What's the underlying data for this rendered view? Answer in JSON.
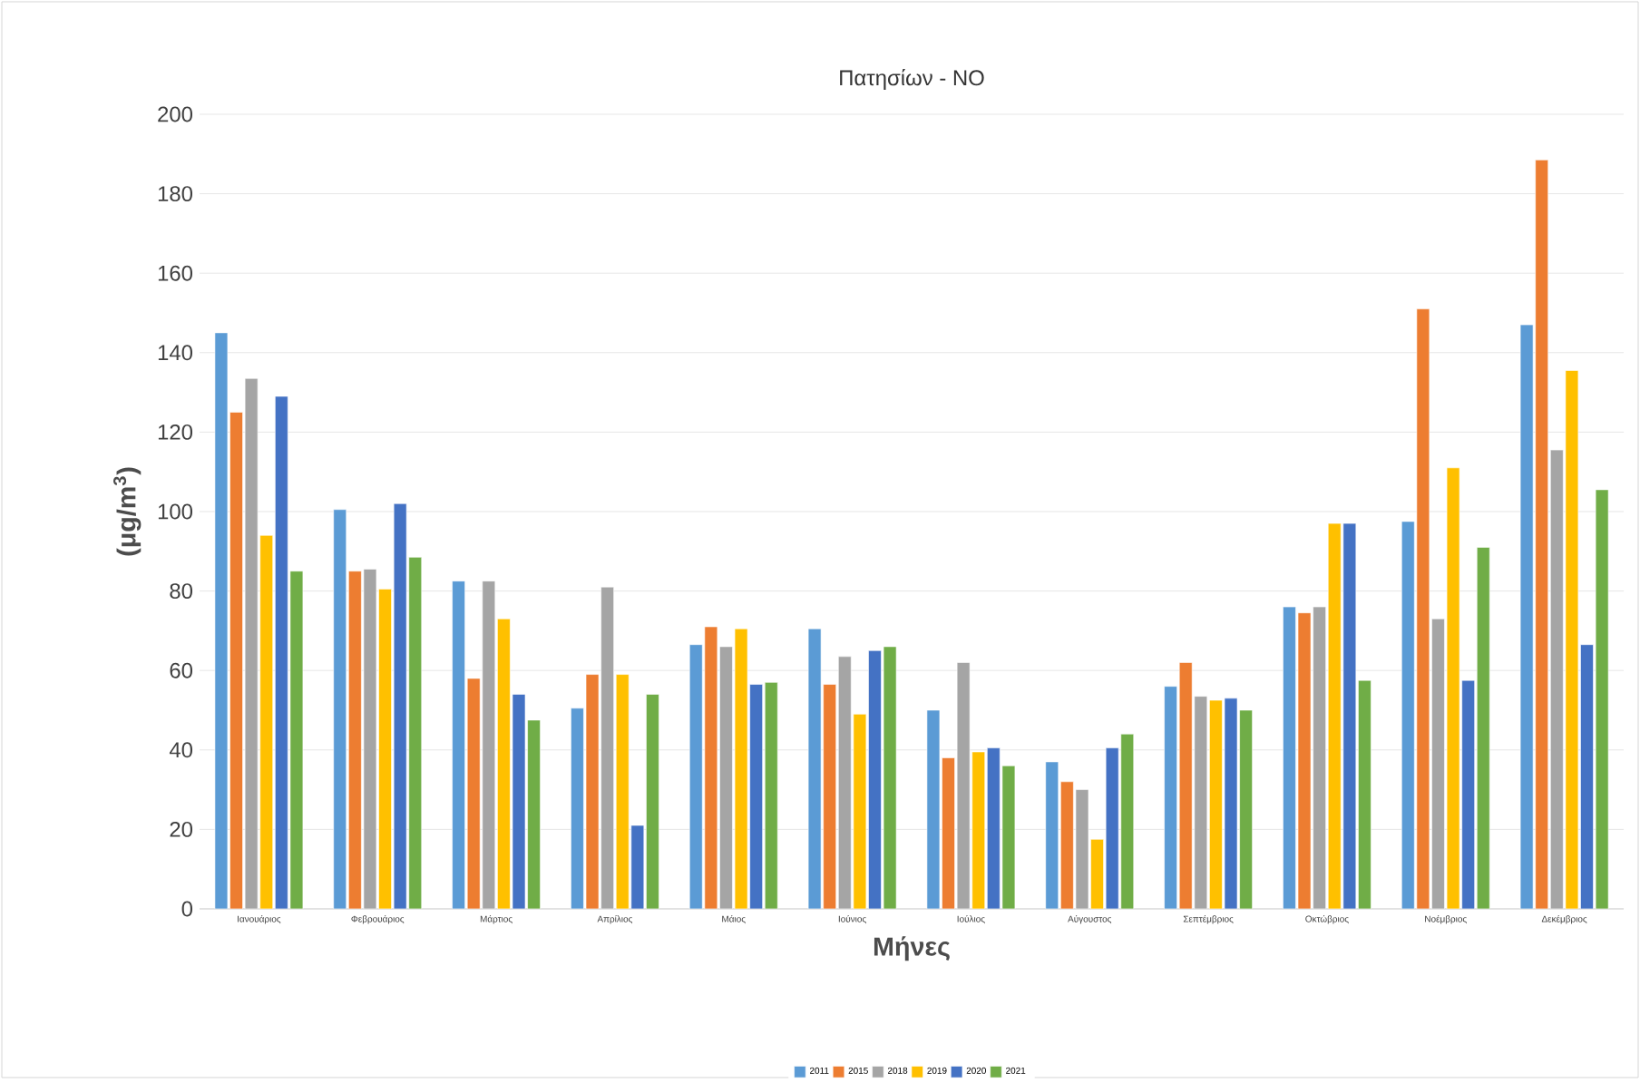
{
  "chart_data": {
    "type": "bar",
    "title": "Πατησίων - NO",
    "xlabel": "Μήνες",
    "ylabel": "(μg/m$^{3}$)",
    "categories": [
      "Ιανουάριος",
      "Φεβρουάριος",
      "Μάρτιος",
      "Απρίλιος",
      "Μάιος",
      "Ιούνιος",
      "Ιούλιος",
      "Αύγουστος",
      "Σεπτέμβριος",
      "Οκτώβριος",
      "Νοέμβριος",
      "Δεκέμβριος"
    ],
    "series": [
      {
        "name": "2011",
        "color": "#5b9bd5",
        "values": [
          145,
          100.5,
          82.5,
          50.5,
          66.5,
          70.5,
          50,
          37,
          56,
          76,
          97.5,
          147
        ]
      },
      {
        "name": "2015",
        "color": "#ed7d31",
        "values": [
          125,
          85,
          58,
          59,
          71,
          56.5,
          38,
          32,
          62,
          74.5,
          151,
          188.5
        ]
      },
      {
        "name": "2018",
        "color": "#a5a5a5",
        "values": [
          133.5,
          85.5,
          82.5,
          81,
          66,
          63.5,
          62,
          30,
          53.5,
          76,
          73,
          115.5
        ]
      },
      {
        "name": "2019",
        "color": "#ffc000",
        "values": [
          94,
          80.5,
          73,
          59,
          70.5,
          49,
          39.5,
          17.5,
          52.5,
          97,
          111,
          135.5
        ]
      },
      {
        "name": "2020",
        "color": "#4472c4",
        "values": [
          129,
          102,
          54,
          21,
          56.5,
          65,
          40.5,
          40.5,
          53,
          97,
          57.5,
          66.5
        ]
      },
      {
        "name": "2021",
        "color": "#70ad47",
        "values": [
          85,
          88.5,
          47.5,
          54,
          57,
          66,
          36,
          44,
          50,
          57.5,
          91,
          105.5
        ]
      }
    ],
    "ylim": [
      0,
      200
    ],
    "yticks": [
      0,
      20,
      40,
      60,
      80,
      100,
      120,
      140,
      160,
      180,
      200
    ],
    "grid": "y",
    "legend": "bottom"
  }
}
